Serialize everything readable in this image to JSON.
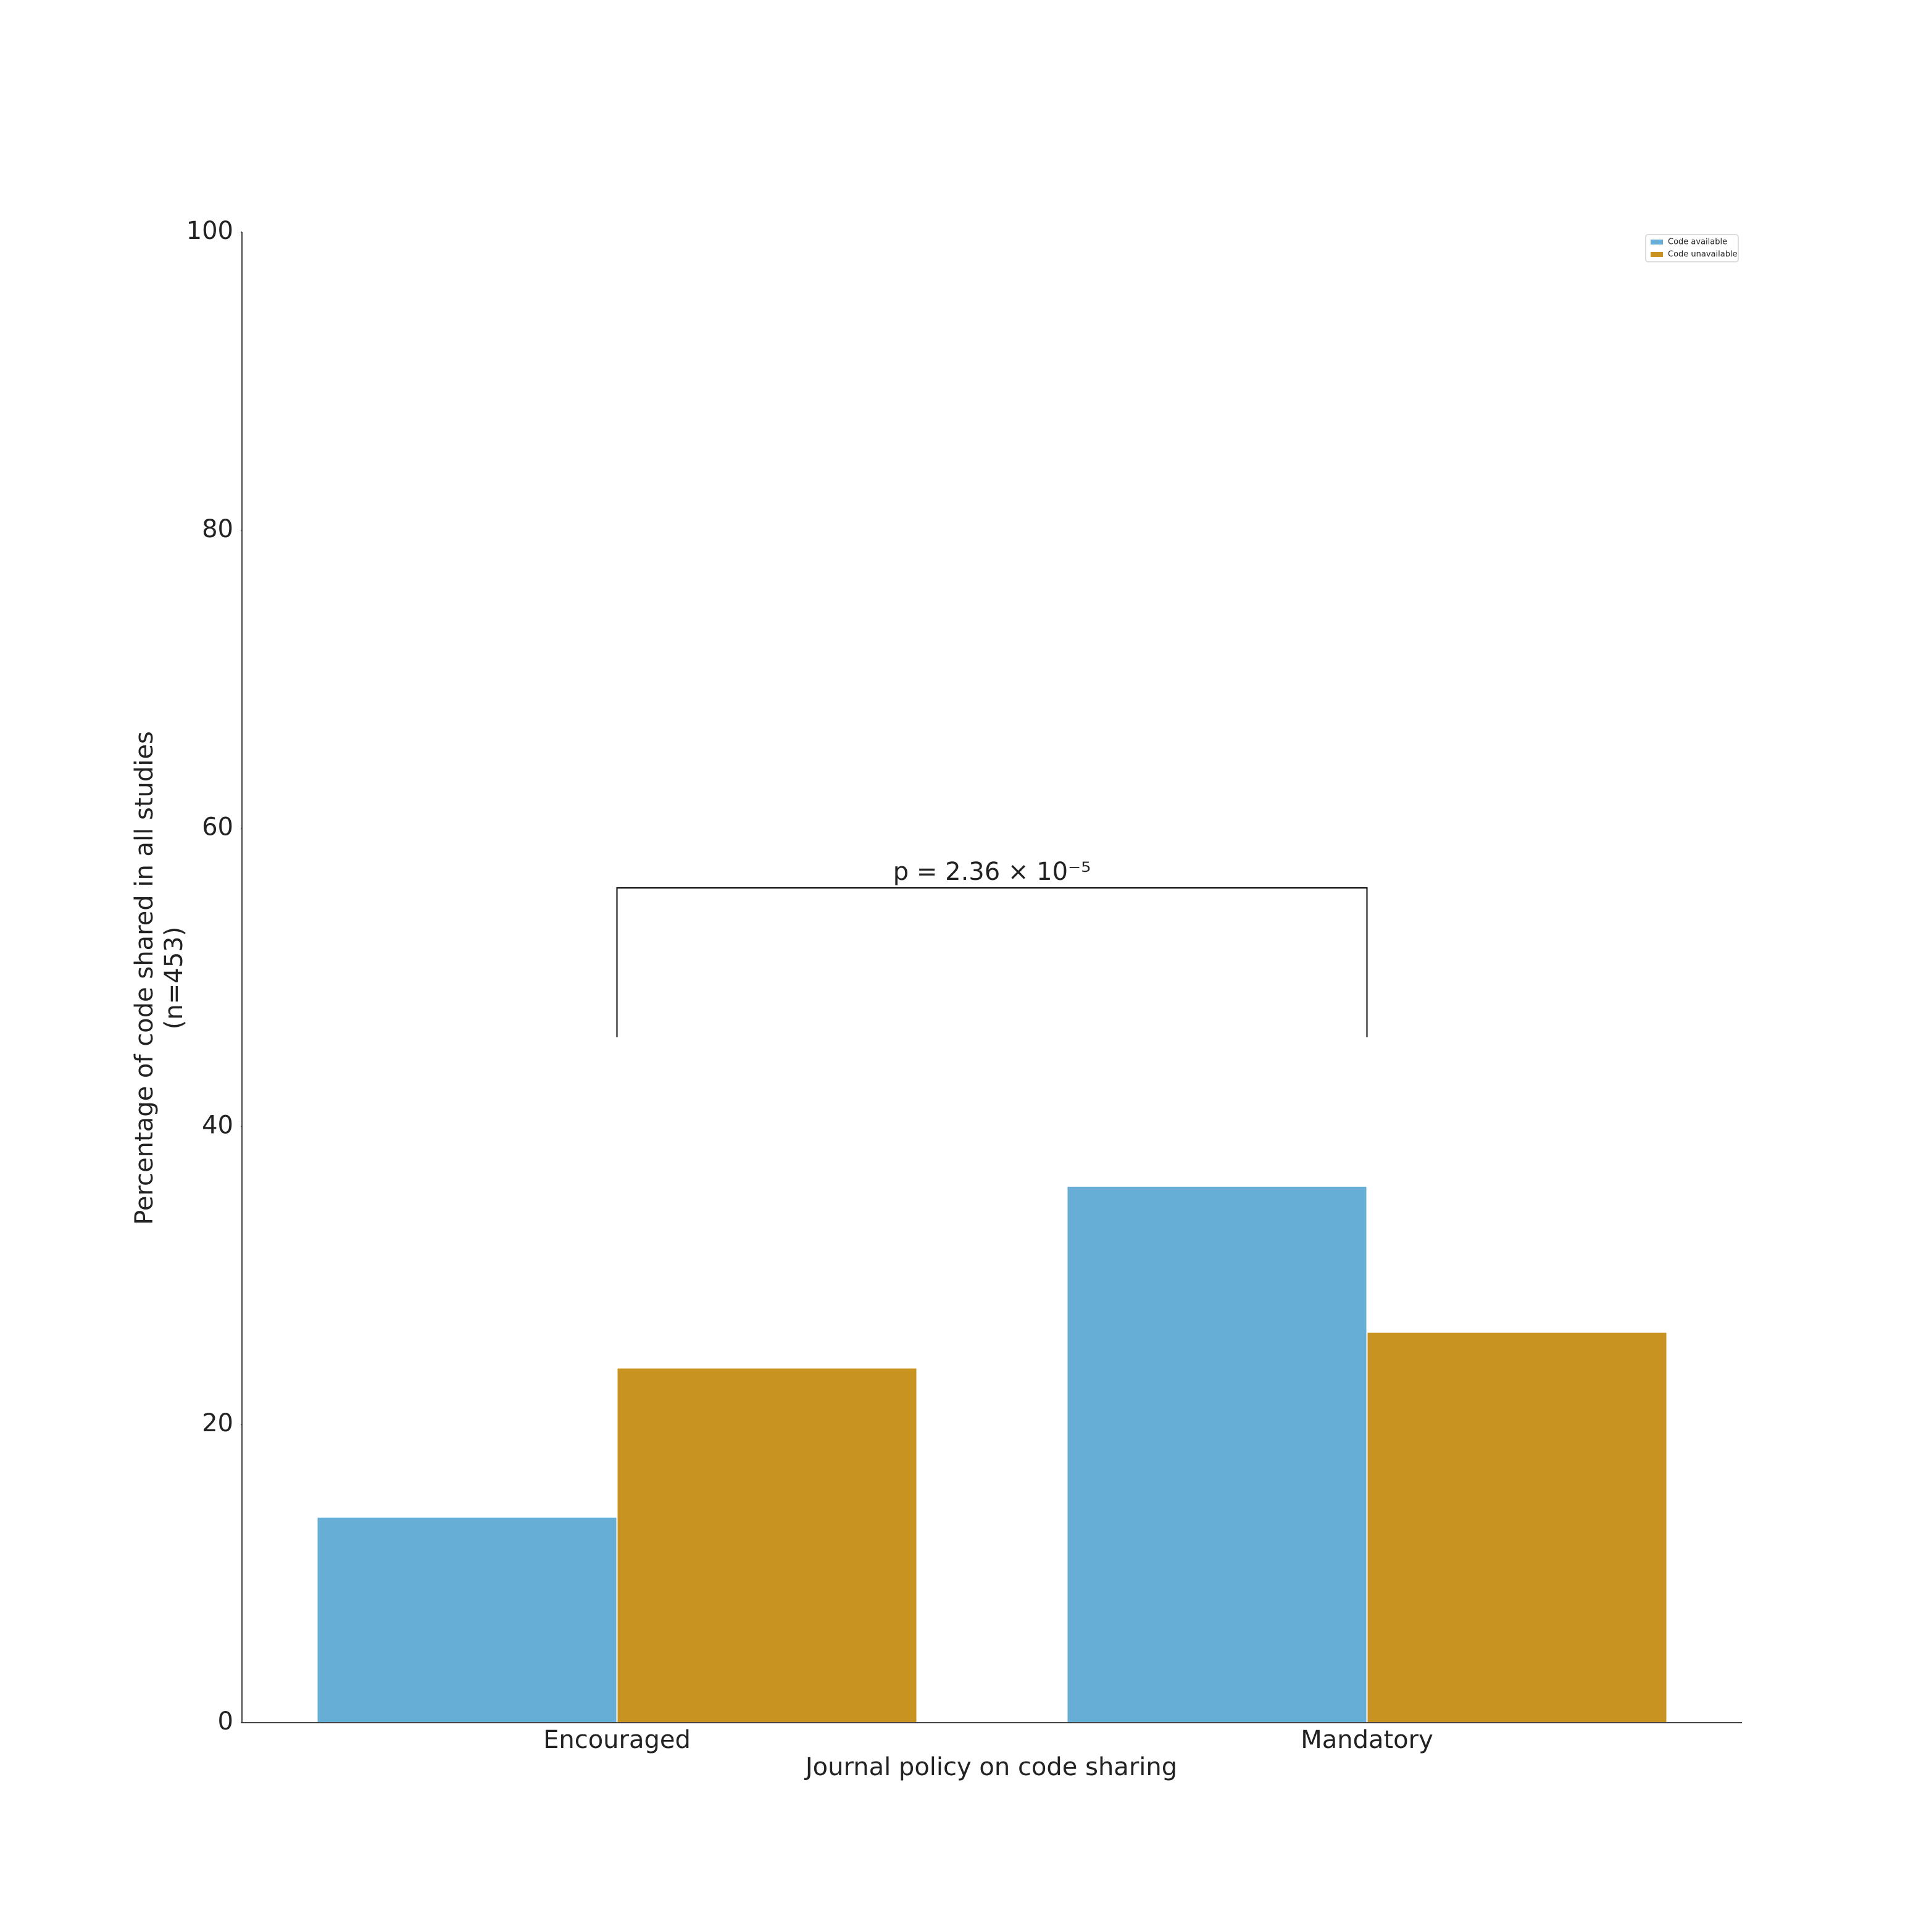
{
  "chart_data": {
    "type": "bar",
    "xlabel": "Journal policy on code sharing",
    "ylabel": [
      "Percentage of code shared in all studies",
      "(n=453)"
    ],
    "categories": [
      "Encouraged",
      "Mandatory"
    ],
    "series": [
      {
        "name": "Code available",
        "color": "#67aed6",
        "values": [
          13.8,
          36.0
        ]
      },
      {
        "name": "Code unavailable",
        "color": "#c89320",
        "values": [
          23.8,
          26.2
        ]
      }
    ],
    "ylim": [
      0,
      100
    ],
    "yticks": [
      0,
      20,
      40,
      60,
      80,
      100
    ],
    "annotation": "p = 2.36 × 10⁻⁵",
    "legend": "upper right"
  }
}
